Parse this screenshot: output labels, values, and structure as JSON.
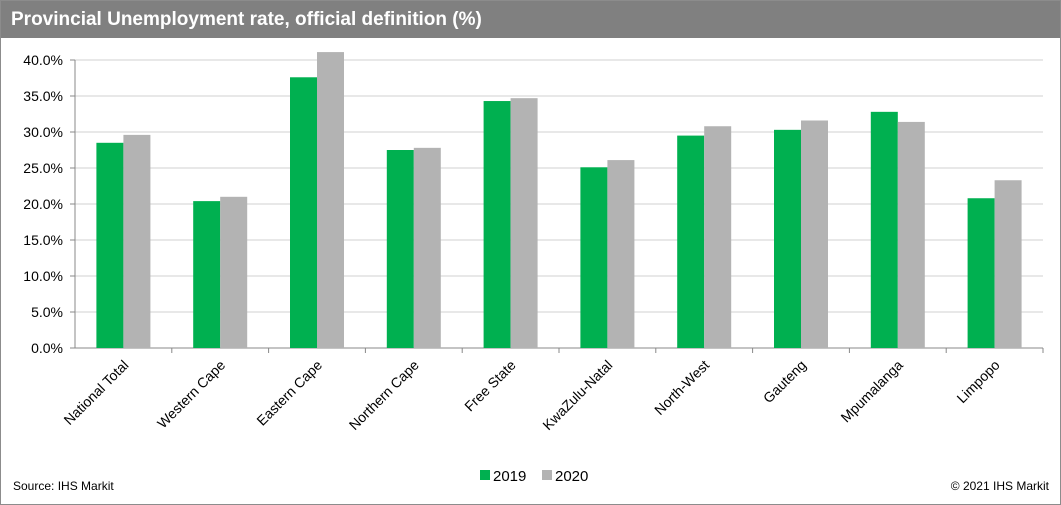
{
  "header": {
    "title": "Provincial Unemployment rate, official definition (%)"
  },
  "footer": {
    "source": "Source: IHS Markit",
    "copyright": "© 2021 IHS Markit"
  },
  "colors": {
    "series_2019": "#00b050",
    "series_2020": "#b3b3b3",
    "title_bar": "#808080"
  },
  "chart_data": {
    "type": "bar",
    "title": "Provincial Unemployment rate, official definition (%)",
    "categories": [
      "National Total",
      "Western Cape",
      "Eastern Cape",
      "Northern Cape",
      "Free State",
      "KwaZulu-Natal",
      "North-West",
      "Gauteng",
      "Mpumalanga",
      "Limpopo"
    ],
    "series": [
      {
        "name": "2019",
        "color": "#00b050",
        "values": [
          28.5,
          20.4,
          37.6,
          27.5,
          34.3,
          25.1,
          29.5,
          30.3,
          32.8,
          20.8
        ]
      },
      {
        "name": "2020",
        "color": "#b3b3b3",
        "values": [
          29.6,
          21.0,
          41.1,
          27.8,
          34.7,
          26.1,
          30.8,
          31.6,
          31.4,
          23.3
        ]
      }
    ],
    "ylim": [
      0,
      40
    ],
    "yticks": [
      "0.0%",
      "5.0%",
      "10.0%",
      "15.0%",
      "20.0%",
      "25.0%",
      "30.0%",
      "35.0%",
      "40.0%"
    ],
    "ytick_values": [
      0,
      5,
      10,
      15,
      20,
      25,
      30,
      35,
      40
    ],
    "xlabel": "",
    "ylabel": "",
    "grid": true,
    "legend_position": "bottom-center"
  }
}
